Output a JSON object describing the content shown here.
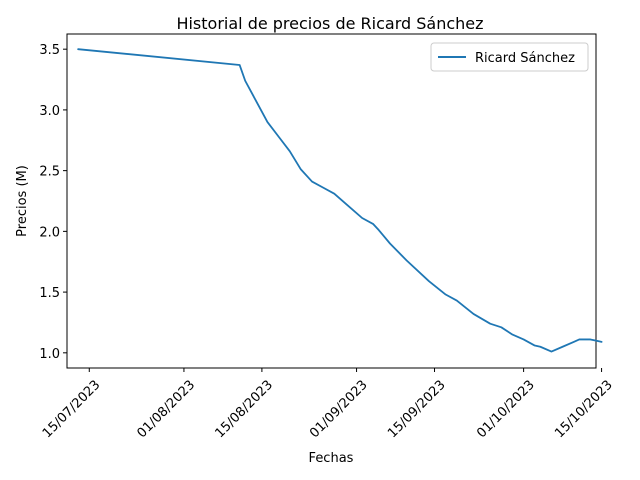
{
  "chart_data": {
    "type": "line",
    "title": "Historial de precios de Ricard Sánchez",
    "xlabel": "Fechas",
    "ylabel": "Precios (M)",
    "x_tick_labels": [
      "15/07/2023",
      "01/08/2023",
      "15/08/2023",
      "01/09/2023",
      "15/09/2023",
      "01/10/2023",
      "15/10/2023"
    ],
    "y_tick_labels": [
      "1.0",
      "1.5",
      "2.0",
      "2.5",
      "3.0",
      "3.5"
    ],
    "xlim": [
      "2023-07-11",
      "2023-10-14"
    ],
    "ylim": [
      0.875,
      3.625
    ],
    "legend_position": "top-right",
    "series_color": "#1f77b4",
    "series": [
      {
        "name": "Ricard Sánchez",
        "points": [
          [
            "2023-07-13",
            3.5
          ],
          [
            "2023-08-11",
            3.37
          ],
          [
            "2023-08-12",
            3.24
          ],
          [
            "2023-08-14",
            3.07
          ],
          [
            "2023-08-16",
            2.9
          ],
          [
            "2023-08-18",
            2.78
          ],
          [
            "2023-08-20",
            2.66
          ],
          [
            "2023-08-22",
            2.51
          ],
          [
            "2023-08-24",
            2.41
          ],
          [
            "2023-08-26",
            2.36
          ],
          [
            "2023-08-28",
            2.31
          ],
          [
            "2023-08-30",
            2.23
          ],
          [
            "2023-09-02",
            2.11
          ],
          [
            "2023-09-04",
            2.06
          ],
          [
            "2023-09-05",
            2.01
          ],
          [
            "2023-09-07",
            1.9
          ],
          [
            "2023-09-10",
            1.76
          ],
          [
            "2023-09-14",
            1.59
          ],
          [
            "2023-09-17",
            1.48
          ],
          [
            "2023-09-19",
            1.43
          ],
          [
            "2023-09-22",
            1.32
          ],
          [
            "2023-09-25",
            1.24
          ],
          [
            "2023-09-27",
            1.21
          ],
          [
            "2023-09-29",
            1.15
          ],
          [
            "2023-10-01",
            1.11
          ],
          [
            "2023-10-03",
            1.06
          ],
          [
            "2023-10-04",
            1.05
          ],
          [
            "2023-10-06",
            1.01
          ],
          [
            "2023-10-08",
            1.05
          ],
          [
            "2023-10-10",
            1.09
          ],
          [
            "2023-10-11",
            1.11
          ],
          [
            "2023-10-13",
            1.11
          ],
          [
            "2023-10-14",
            1.1
          ],
          [
            "2023-10-15",
            1.09
          ]
        ]
      }
    ]
  }
}
